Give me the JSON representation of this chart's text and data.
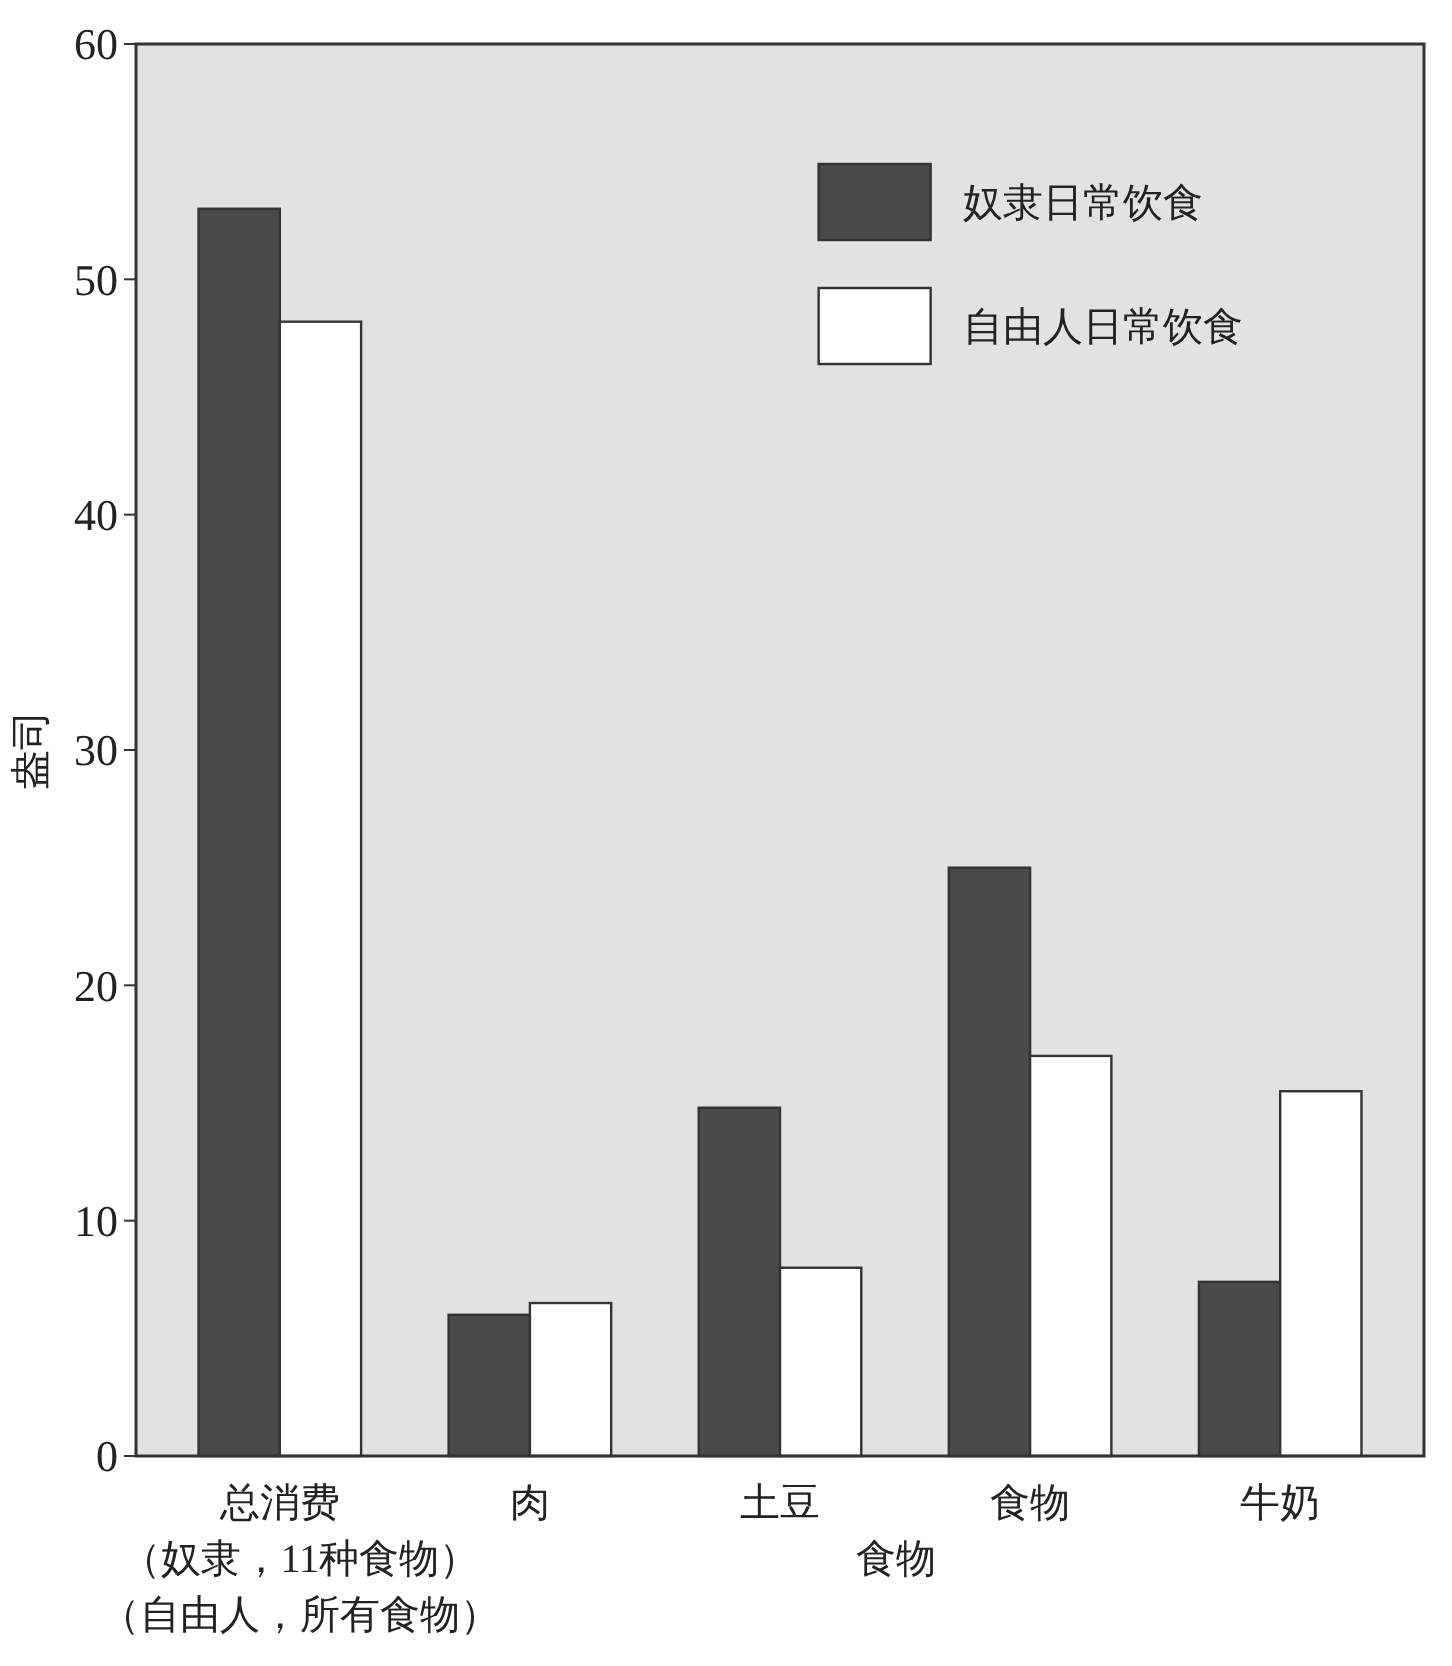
{
  "chart_data": {
    "type": "bar",
    "xlabel": "食物",
    "ylabel": "盎司",
    "categories": [
      "总消费",
      "肉",
      "土豆",
      "食物",
      "牛奶"
    ],
    "annotations": [
      "（奴隶，11种食物）",
      "（自由人，所有食物）"
    ],
    "series": [
      {
        "name": "奴隶日常饮食",
        "color": "#4a4a4a",
        "values": [
          53.0,
          6.0,
          14.8,
          25.0,
          7.4
        ]
      },
      {
        "name": "自由人日常饮食",
        "color": "#ffffff",
        "values": [
          48.2,
          6.5,
          8.0,
          17.0,
          15.5
        ]
      }
    ],
    "ylim": [
      0,
      60
    ],
    "yticks": [
      0,
      10,
      20,
      30,
      40,
      50,
      60
    ],
    "grid": false,
    "legend": "top right"
  }
}
